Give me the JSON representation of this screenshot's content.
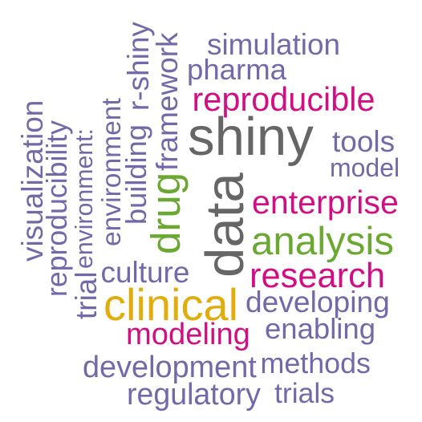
{
  "palette": {
    "background": "#ffffff",
    "purple": "#7468a8",
    "magenta": "#d10f84",
    "gray": "#666666",
    "green": "#6aa832",
    "gold": "#e0ad0c"
  },
  "words": [
    {
      "id": "shiny",
      "text": "shiny",
      "color": "#666666"
    },
    {
      "id": "data",
      "text": "data",
      "color": "#666666"
    },
    {
      "id": "clinical",
      "text": "clinical",
      "color": "#e0ad0c"
    },
    {
      "id": "analysis",
      "text": "analysis",
      "color": "#6aa832"
    },
    {
      "id": "drug",
      "text": "drug",
      "color": "#6aa832"
    },
    {
      "id": "enterprise",
      "text": "enterprise",
      "color": "#d10f84"
    },
    {
      "id": "research",
      "text": "research",
      "color": "#d10f84"
    },
    {
      "id": "reproducible",
      "text": "reproducible",
      "color": "#d10f84"
    },
    {
      "id": "modeling",
      "text": "modeling",
      "color": "#d10f84"
    },
    {
      "id": "simulation",
      "text": "simulation",
      "color": "#7468a8"
    },
    {
      "id": "pharma",
      "text": "pharma",
      "color": "#7468a8"
    },
    {
      "id": "tools",
      "text": "tools",
      "color": "#7468a8"
    },
    {
      "id": "model",
      "text": "model",
      "color": "#7468a8"
    },
    {
      "id": "culture",
      "text": "culture",
      "color": "#7468a8"
    },
    {
      "id": "developing",
      "text": "developing",
      "color": "#7468a8"
    },
    {
      "id": "enabling",
      "text": "enabling",
      "color": "#7468a8"
    },
    {
      "id": "development",
      "text": "development",
      "color": "#7468a8"
    },
    {
      "id": "methods",
      "text": "methods",
      "color": "#7468a8"
    },
    {
      "id": "regulatory",
      "text": "regulatory",
      "color": "#7468a8"
    },
    {
      "id": "trials",
      "text": "trials",
      "color": "#7468a8"
    },
    {
      "id": "visualization",
      "text": "visualization",
      "color": "#7468a8"
    },
    {
      "id": "reproducibility",
      "text": "reproducibility",
      "color": "#7468a8"
    },
    {
      "id": "trial",
      "text": "trial",
      "color": "#7468a8"
    },
    {
      "id": "environment-colon",
      "text": "environment:",
      "color": "#7468a8"
    },
    {
      "id": "environment",
      "text": "environment",
      "color": "#7468a8"
    },
    {
      "id": "building",
      "text": "building",
      "color": "#7468a8"
    },
    {
      "id": "r-shiny",
      "text": "r-shiny",
      "color": "#7468a8"
    },
    {
      "id": "framework",
      "text": "framework",
      "color": "#7468a8"
    }
  ]
}
